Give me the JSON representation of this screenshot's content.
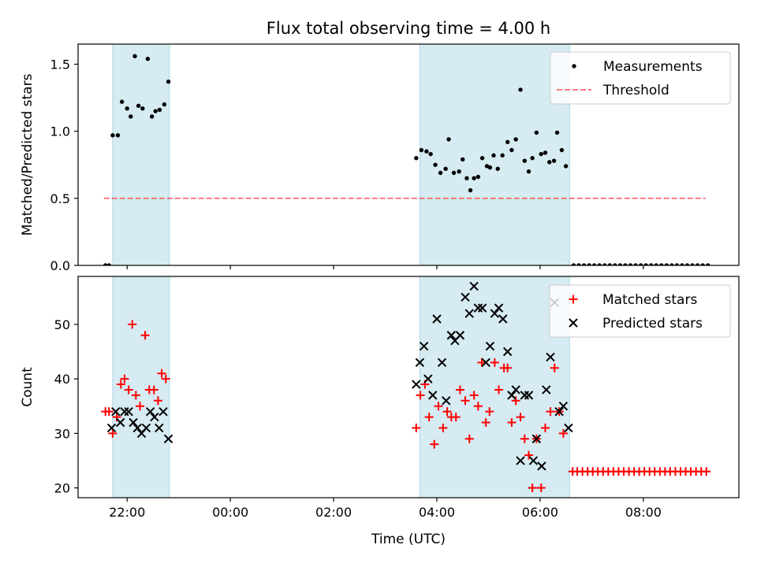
{
  "title": "Flux total observing time = 4.00 h",
  "colors": {
    "band": "#add8e6",
    "measurement": "#000000",
    "threshold": "#ff0000",
    "matched": "#ff0000",
    "predicted": "#000000"
  },
  "chart_data": [
    {
      "type": "scatter",
      "ylabel": "Matched/Predicted stars",
      "xlabel": "",
      "x_unit": "hours since 00:00 UTC",
      "xlim": [
        -2.95,
        9.85
      ],
      "ylim": [
        0,
        1.65
      ],
      "xticks": [
        -2,
        0,
        2,
        4,
        6,
        8
      ],
      "xtick_labels": [
        "",
        "",
        "",
        "",
        "",
        ""
      ],
      "yticks": [
        0,
        0.5,
        1.0,
        1.5
      ],
      "ytick_labels": [
        "0.0",
        "0.5",
        "1.0",
        "1.5"
      ],
      "shaded_intervals": [
        [
          -2.28,
          -1.18
        ],
        [
          3.67,
          6.57
        ]
      ],
      "legend_position": "top-right",
      "series": [
        {
          "name": "Measurements",
          "marker": "dot",
          "points": [
            [
              -2.42,
              0.0
            ],
            [
              -2.35,
              0.0
            ],
            [
              -2.28,
              0.97
            ],
            [
              -2.18,
              0.97
            ],
            [
              -2.1,
              1.22
            ],
            [
              -2.0,
              1.17
            ],
            [
              -1.93,
              1.11
            ],
            [
              -1.85,
              1.56
            ],
            [
              -1.78,
              1.19
            ],
            [
              -1.7,
              1.17
            ],
            [
              -1.6,
              1.54
            ],
            [
              -1.52,
              1.11
            ],
            [
              -1.45,
              1.15
            ],
            [
              -1.37,
              1.16
            ],
            [
              -1.28,
              1.2
            ],
            [
              -1.2,
              1.37
            ],
            [
              3.6,
              0.8
            ],
            [
              3.7,
              0.86
            ],
            [
              3.8,
              0.85
            ],
            [
              3.88,
              0.83
            ],
            [
              3.97,
              0.75
            ],
            [
              4.07,
              0.69
            ],
            [
              4.17,
              0.72
            ],
            [
              4.23,
              0.94
            ],
            [
              4.33,
              0.69
            ],
            [
              4.43,
              0.7
            ],
            [
              4.5,
              0.79
            ],
            [
              4.58,
              0.65
            ],
            [
              4.65,
              0.56
            ],
            [
              4.72,
              0.65
            ],
            [
              4.8,
              0.66
            ],
            [
              4.88,
              0.8
            ],
            [
              4.97,
              0.74
            ],
            [
              5.03,
              0.73
            ],
            [
              5.1,
              0.82
            ],
            [
              5.18,
              0.72
            ],
            [
              5.27,
              0.82
            ],
            [
              5.37,
              0.92
            ],
            [
              5.45,
              0.86
            ],
            [
              5.53,
              0.94
            ],
            [
              5.62,
              1.31
            ],
            [
              5.7,
              0.78
            ],
            [
              5.78,
              0.7
            ],
            [
              5.85,
              0.8
            ],
            [
              5.93,
              0.99
            ],
            [
              6.02,
              0.83
            ],
            [
              6.1,
              0.84
            ],
            [
              6.18,
              0.77
            ],
            [
              6.27,
              0.78
            ],
            [
              6.33,
              0.99
            ],
            [
              6.42,
              0.86
            ],
            [
              6.5,
              0.74
            ],
            [
              6.65,
              0.0
            ],
            [
              6.75,
              0.0
            ],
            [
              6.85,
              0.0
            ],
            [
              6.95,
              0.0
            ],
            [
              7.05,
              0.0
            ],
            [
              7.15,
              0.0
            ],
            [
              7.25,
              0.0
            ],
            [
              7.35,
              0.0
            ],
            [
              7.45,
              0.0
            ],
            [
              7.55,
              0.0
            ],
            [
              7.65,
              0.0
            ],
            [
              7.75,
              0.0
            ],
            [
              7.85,
              0.0
            ],
            [
              7.95,
              0.0
            ],
            [
              8.05,
              0.0
            ],
            [
              8.15,
              0.0
            ],
            [
              8.25,
              0.0
            ],
            [
              8.35,
              0.0
            ],
            [
              8.45,
              0.0
            ],
            [
              8.55,
              0.0
            ],
            [
              8.65,
              0.0
            ],
            [
              8.75,
              0.0
            ],
            [
              8.85,
              0.0
            ],
            [
              8.95,
              0.0
            ],
            [
              9.05,
              0.0
            ],
            [
              9.15,
              0.0
            ],
            [
              9.25,
              0.0
            ]
          ]
        },
        {
          "name": "Threshold",
          "marker": "dashed-line",
          "points": [
            [
              -2.45,
              0.5
            ],
            [
              9.2,
              0.5
            ]
          ]
        }
      ]
    },
    {
      "type": "scatter",
      "ylabel": "Count",
      "xlabel": "Time (UTC)",
      "x_unit": "hours since 00:00 UTC",
      "xlim": [
        -2.95,
        9.85
      ],
      "ylim": [
        18.2,
        58.8
      ],
      "xticks": [
        -2,
        0,
        2,
        4,
        6,
        8
      ],
      "xtick_labels": [
        "22:00",
        "00:00",
        "02:00",
        "04:00",
        "06:00",
        "08:00"
      ],
      "yticks": [
        20,
        30,
        40,
        50
      ],
      "ytick_labels": [
        "20",
        "30",
        "40",
        "50"
      ],
      "shaded_intervals": [
        [
          -2.28,
          -1.18
        ],
        [
          3.67,
          6.57
        ]
      ],
      "legend_position": "top-right",
      "series": [
        {
          "name": "Matched stars",
          "marker": "plus",
          "points": [
            [
              -2.42,
              34
            ],
            [
              -2.35,
              34
            ],
            [
              -2.28,
              30
            ],
            [
              -2.2,
              33
            ],
            [
              -2.12,
              39
            ],
            [
              -2.05,
              40
            ],
            [
              -1.97,
              38
            ],
            [
              -1.9,
              50
            ],
            [
              -1.83,
              37
            ],
            [
              -1.75,
              35
            ],
            [
              -1.65,
              48
            ],
            [
              -1.57,
              38
            ],
            [
              -1.48,
              38
            ],
            [
              -1.4,
              36
            ],
            [
              -1.33,
              41
            ],
            [
              -1.25,
              40
            ],
            [
              3.6,
              31
            ],
            [
              3.68,
              37
            ],
            [
              3.77,
              39
            ],
            [
              3.85,
              33
            ],
            [
              3.95,
              28
            ],
            [
              4.03,
              35
            ],
            [
              4.12,
              31
            ],
            [
              4.2,
              34
            ],
            [
              4.28,
              33
            ],
            [
              4.37,
              33
            ],
            [
              4.45,
              38
            ],
            [
              4.55,
              36
            ],
            [
              4.63,
              29
            ],
            [
              4.72,
              37
            ],
            [
              4.8,
              35
            ],
            [
              4.87,
              43
            ],
            [
              4.95,
              32
            ],
            [
              5.02,
              34
            ],
            [
              5.12,
              43
            ],
            [
              5.2,
              38
            ],
            [
              5.3,
              42
            ],
            [
              5.37,
              42
            ],
            [
              5.45,
              32
            ],
            [
              5.53,
              36
            ],
            [
              5.62,
              33
            ],
            [
              5.7,
              29
            ],
            [
              5.78,
              26
            ],
            [
              5.85,
              20
            ],
            [
              5.93,
              29
            ],
            [
              6.02,
              20
            ],
            [
              6.1,
              31
            ],
            [
              6.2,
              34
            ],
            [
              6.28,
              42
            ],
            [
              6.37,
              34
            ],
            [
              6.45,
              30
            ],
            [
              6.63,
              23
            ],
            [
              6.72,
              23
            ],
            [
              6.82,
              23
            ],
            [
              6.92,
              23
            ],
            [
              7.02,
              23
            ],
            [
              7.12,
              23
            ],
            [
              7.22,
              23
            ],
            [
              7.32,
              23
            ],
            [
              7.42,
              23
            ],
            [
              7.52,
              23
            ],
            [
              7.62,
              23
            ],
            [
              7.72,
              23
            ],
            [
              7.82,
              23
            ],
            [
              7.92,
              23
            ],
            [
              8.02,
              23
            ],
            [
              8.12,
              23
            ],
            [
              8.22,
              23
            ],
            [
              8.32,
              23
            ],
            [
              8.42,
              23
            ],
            [
              8.52,
              23
            ],
            [
              8.62,
              23
            ],
            [
              8.72,
              23
            ],
            [
              8.82,
              23
            ],
            [
              8.92,
              23
            ],
            [
              9.02,
              23
            ],
            [
              9.12,
              23
            ],
            [
              9.22,
              23
            ]
          ]
        },
        {
          "name": "Predicted stars",
          "marker": "x",
          "points": [
            [
              -2.3,
              31
            ],
            [
              -2.22,
              34
            ],
            [
              -2.13,
              32
            ],
            [
              -2.05,
              34
            ],
            [
              -1.97,
              34
            ],
            [
              -1.88,
              32
            ],
            [
              -1.8,
              31
            ],
            [
              -1.72,
              30
            ],
            [
              -1.63,
              31
            ],
            [
              -1.55,
              34
            ],
            [
              -1.47,
              33
            ],
            [
              -1.38,
              31
            ],
            [
              -1.3,
              34
            ],
            [
              -1.2,
              29
            ],
            [
              3.6,
              39
            ],
            [
              3.67,
              43
            ],
            [
              3.75,
              46
            ],
            [
              3.83,
              40
            ],
            [
              3.92,
              37
            ],
            [
              4.0,
              51
            ],
            [
              4.1,
              43
            ],
            [
              4.18,
              36
            ],
            [
              4.28,
              48
            ],
            [
              4.35,
              47
            ],
            [
              4.45,
              48
            ],
            [
              4.55,
              55
            ],
            [
              4.63,
              52
            ],
            [
              4.72,
              57
            ],
            [
              4.8,
              53
            ],
            [
              4.88,
              53
            ],
            [
              4.95,
              43
            ],
            [
              5.03,
              46
            ],
            [
              5.12,
              52
            ],
            [
              5.2,
              53
            ],
            [
              5.28,
              51
            ],
            [
              5.37,
              45
            ],
            [
              5.45,
              37
            ],
            [
              5.53,
              38
            ],
            [
              5.62,
              25
            ],
            [
              5.7,
              37
            ],
            [
              5.78,
              37
            ],
            [
              5.87,
              25
            ],
            [
              5.93,
              29
            ],
            [
              6.03,
              24
            ],
            [
              6.12,
              38
            ],
            [
              6.2,
              44
            ],
            [
              6.28,
              54
            ],
            [
              6.37,
              34
            ],
            [
              6.45,
              35
            ],
            [
              6.55,
              31
            ]
          ]
        }
      ]
    }
  ]
}
